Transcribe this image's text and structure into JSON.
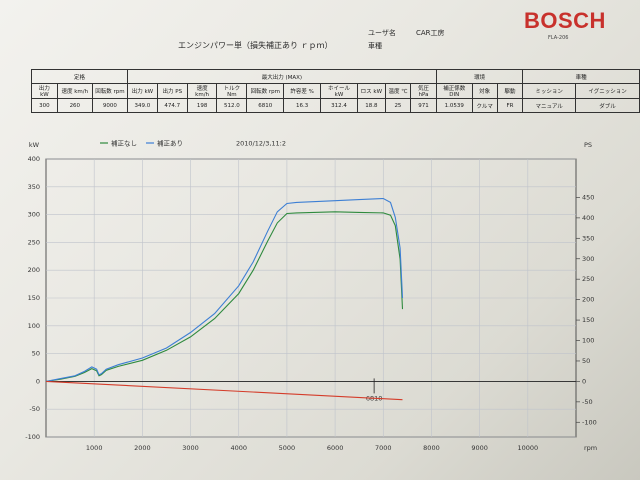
{
  "header": {
    "title": "エンジンパワー単（損失補正あり ｒｐｍ）",
    "user_label": "ユーザ名",
    "user_value": "CAR工房",
    "vehicle_label": "車種",
    "brand": "BOSCH",
    "model_code": "FLA-206"
  },
  "spec_table": {
    "group_headers": [
      "定格",
      "最大出力 (MAX)",
      "環境",
      "車種"
    ],
    "headers": [
      "出力 kW",
      "速度 km/h",
      "回転数 rpm",
      "出力 kW",
      "出力 PS",
      "速度 km/h",
      "トルク Nm",
      "回転数 rpm",
      "許容差 %",
      "ホイール kW",
      "ロス kW",
      "温度 ℃",
      "気圧 hPa",
      "補正係数 DIN",
      "対象",
      "駆動",
      "ミッション",
      "イグニッション"
    ],
    "values": [
      "300",
      "260",
      "9000",
      "349.0",
      "474.7",
      "198",
      "512.0",
      "6810",
      "16.3",
      "312.4",
      "18.8",
      "25",
      "971",
      "1.0539",
      "クルマ",
      "FR",
      "マニュアル",
      "ダブル"
    ]
  },
  "chart_data": {
    "type": "line",
    "legend": [
      "補正なし",
      "補正あり"
    ],
    "date": "2010/12/3,11:2",
    "left_unit": "kW",
    "right_unit": "PS",
    "x_unit": "rpm",
    "xlim": [
      0,
      11000
    ],
    "ylim": [
      -100,
      400
    ],
    "x_ticks": [
      "1000",
      "2000",
      "3000",
      "4000",
      "5000",
      "6000",
      "7000",
      "8000",
      "9000",
      "10000"
    ],
    "y_ticks_left": [
      "400",
      "350",
      "300",
      "250",
      "200",
      "150",
      "100",
      "50",
      "0",
      "-50",
      "-100"
    ],
    "y_ticks_right": [
      "450",
      "400",
      "350",
      "300",
      "250",
      "200",
      "150",
      "100",
      "50",
      "0",
      "-50",
      "-100"
    ],
    "marker_label": "6810",
    "series": [
      {
        "name": "補正なし",
        "color": "#2f8a3e",
        "x": [
          0,
          300,
          600,
          800,
          950,
          1050,
          1100,
          1150,
          1250,
          1500,
          2000,
          2500,
          3000,
          3500,
          4000,
          4300,
          4600,
          4800,
          5000,
          5200,
          6000,
          6500,
          7000,
          7150,
          7250,
          7350,
          7400
        ],
        "y": [
          0,
          4,
          9,
          16,
          23,
          19,
          10,
          12,
          20,
          27,
          38,
          56,
          80,
          113,
          158,
          200,
          252,
          285,
          302,
          303,
          305,
          304,
          303,
          299,
          280,
          220,
          130
        ]
      },
      {
        "name": "補正あり",
        "color": "#3d7fd4",
        "x": [
          0,
          300,
          600,
          800,
          950,
          1050,
          1100,
          1150,
          1250,
          1500,
          2000,
          2500,
          3000,
          3500,
          4000,
          4300,
          4600,
          4800,
          5000,
          5200,
          6000,
          6500,
          7000,
          7150,
          7250,
          7350,
          7400
        ],
        "y": [
          0,
          5,
          10,
          18,
          26,
          22,
          12,
          14,
          22,
          30,
          42,
          60,
          88,
          122,
          172,
          215,
          270,
          305,
          320,
          322,
          325,
          327,
          329,
          322,
          295,
          240,
          150
        ]
      },
      {
        "name": "",
        "color": "#d43c2a",
        "x": [
          0,
          7400
        ],
        "y": [
          0,
          -33
        ]
      }
    ]
  }
}
